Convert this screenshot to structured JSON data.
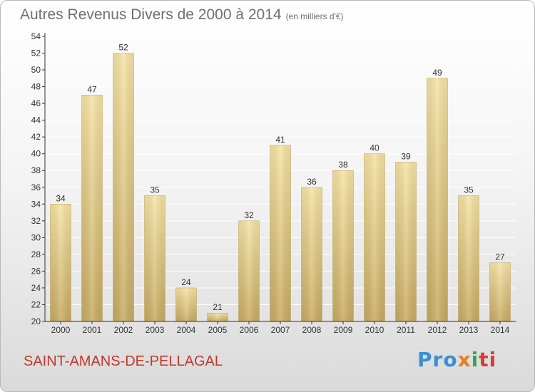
{
  "header": {
    "title": "Autres Revenus Divers de 2000 à 2014",
    "subtitle": "(en milliers d'€)"
  },
  "footer": {
    "location": "SAINT-AMANS-DE-PELLAGAL",
    "logo_parts": [
      "Pro",
      "x",
      "i",
      "ti"
    ]
  },
  "colors": {
    "bar_top": "#f6e3a4",
    "bar_bottom": "#c8ab62",
    "axis": "#333333",
    "grid": "#ffffff",
    "location": "#c0392b"
  },
  "chart_data": {
    "type": "bar",
    "categories": [
      "2000",
      "2001",
      "2002",
      "2003",
      "2004",
      "2005",
      "2006",
      "2007",
      "2008",
      "2009",
      "2010",
      "2011",
      "2012",
      "2013",
      "2014"
    ],
    "values": [
      34,
      47,
      52,
      35,
      24,
      21,
      32,
      41,
      36,
      38,
      40,
      39,
      49,
      35,
      27
    ],
    "ylim": [
      20,
      54
    ],
    "yticks": [
      20,
      22,
      24,
      26,
      28,
      30,
      32,
      34,
      36,
      38,
      40,
      42,
      44,
      46,
      48,
      50,
      52,
      54
    ],
    "title": "Autres Revenus Divers de 2000 à 2014",
    "ylabel": "",
    "xlabel": "",
    "grid": true,
    "data_labels": true
  }
}
